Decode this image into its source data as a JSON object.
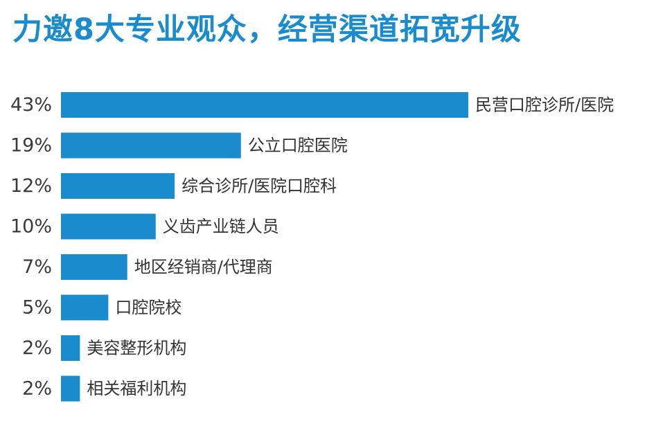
{
  "title": "力邀8大专业观众，经营渠道拓宽升级",
  "colors": {
    "title": "#1a8ccd",
    "bar": "#1a8ccd",
    "text": "#333333"
  },
  "chart_data": {
    "type": "bar",
    "orientation": "horizontal",
    "categories": [
      "民营口腔诊所/医院",
      "公立口腔医院",
      "综合诊所/医院口腔科",
      "义齿产业链人员",
      "地区经销商/代理商",
      "口腔院校",
      "美容整形机构",
      "相关福利机构"
    ],
    "values": [
      43,
      19,
      12,
      10,
      7,
      5,
      2,
      2
    ],
    "value_labels": [
      "43%",
      "19%",
      "12%",
      "10%",
      "7%",
      "5%",
      "2%",
      "2%"
    ],
    "unit": "%",
    "grid": false,
    "legend": "none"
  }
}
